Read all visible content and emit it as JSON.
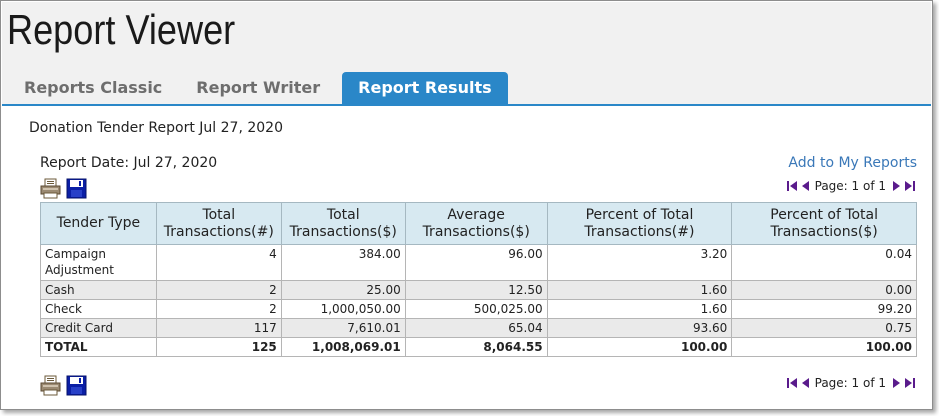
{
  "app": {
    "title": "Report Viewer"
  },
  "tabs": [
    {
      "label": "Reports Classic",
      "active": false
    },
    {
      "label": "Report Writer",
      "active": false
    },
    {
      "label": "Report Results",
      "active": true
    }
  ],
  "report": {
    "heading": "Donation Tender Report Jul 27, 2020",
    "date_label": "Report Date: Jul 27, 2020",
    "add_link": "Add to My Reports",
    "pager_text": "Page: 1 of 1"
  },
  "table": {
    "headers": [
      "Tender Type",
      "Total Transactions(#)",
      "Total Transactions($)",
      "Average Transactions($)",
      "Percent of Total Transactions(#)",
      "Percent of Total Transactions($)"
    ],
    "rows": [
      [
        "Campaign Adjustment",
        "4",
        "384.00",
        "96.00",
        "3.20",
        "0.04"
      ],
      [
        "Cash",
        "2",
        "25.00",
        "12.50",
        "1.60",
        "0.00"
      ],
      [
        "Check",
        "2",
        "1,000,050.00",
        "500,025.00",
        "1.60",
        "99.20"
      ],
      [
        "Credit Card",
        "117",
        "7,610.01",
        "65.04",
        "93.60",
        "0.75"
      ],
      [
        "TOTAL",
        "125",
        "1,008,069.01",
        "8,064.55",
        "100.00",
        "100.00"
      ]
    ]
  },
  "icons": {
    "print": "printer-icon",
    "save": "floppy-disk-icon",
    "first": "first-page-icon",
    "prev": "previous-page-icon",
    "next": "next-page-icon",
    "last": "last-page-icon"
  },
  "colors": {
    "accent": "#2a87c8",
    "header_bg": "#f1f1f1",
    "table_header_bg": "#d7e9f1",
    "link": "#3a78b8",
    "pager_arrows": "#5a1b8c"
  }
}
